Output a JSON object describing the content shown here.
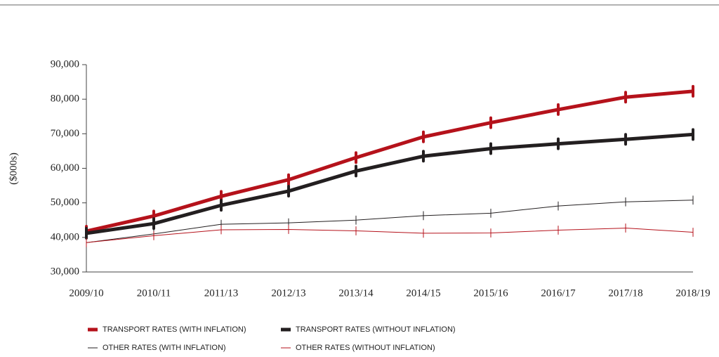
{
  "chart_data": {
    "type": "line",
    "y_label": "($000s)",
    "categories": [
      "2009/10",
      "2010/11",
      "2011/13",
      "2012/13",
      "2013/14",
      "2014/15",
      "2015/16",
      "2016/17",
      "2017/18",
      "2018/19"
    ],
    "series": [
      {
        "name": "TRANSPORT RATES (WITH INFLATION)",
        "color": "#b5121b",
        "width": 5,
        "values": [
          41800,
          46200,
          51900,
          56700,
          63100,
          69100,
          73200,
          77000,
          80600,
          82300
        ]
      },
      {
        "name": "TRANSPORT RATES (WITHOUT INFLATION)",
        "color": "#231f20",
        "width": 5,
        "values": [
          41200,
          44000,
          49300,
          53400,
          59200,
          63500,
          65700,
          67100,
          68400,
          69800
        ]
      },
      {
        "name": "OTHER RATES (WITH INFLATION)",
        "color": "#231f20",
        "width": 1,
        "values": [
          38500,
          41000,
          43800,
          44200,
          45000,
          46300,
          47000,
          49100,
          50300,
          50800
        ]
      },
      {
        "name": "OTHER RATES (WITHOUT INFLATION)",
        "color": "#b5121b",
        "width": 1,
        "values": [
          38500,
          40500,
          42200,
          42300,
          41900,
          41200,
          41300,
          42100,
          42700,
          41500
        ]
      }
    ],
    "ylim": [
      30000,
      90000
    ],
    "yticks": [
      {
        "value": 30000,
        "label": "30,000"
      },
      {
        "value": 40000,
        "label": "40,000"
      },
      {
        "value": 50000,
        "label": "50,000"
      },
      {
        "value": 60000,
        "label": "60,000"
      },
      {
        "value": 70000,
        "label": "70,000"
      },
      {
        "value": 80000,
        "label": "80,000"
      },
      {
        "value": 90000,
        "label": "90,000"
      }
    ]
  }
}
